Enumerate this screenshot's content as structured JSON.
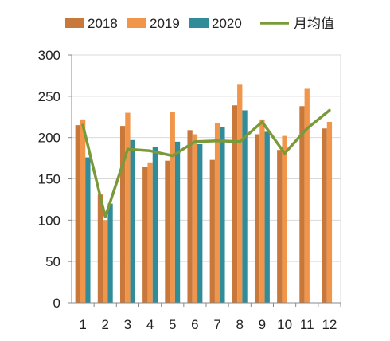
{
  "chart_data": {
    "type": "bar",
    "categories": [
      "1",
      "2",
      "3",
      "4",
      "5",
      "6",
      "7",
      "8",
      "9",
      "10",
      "11",
      "12"
    ],
    "series": [
      {
        "name": "2018",
        "type": "bar",
        "color": "#C8783A",
        "values": [
          215,
          131,
          214,
          164,
          172,
          209,
          173,
          239,
          204,
          185,
          238,
          211
        ]
      },
      {
        "name": "2019",
        "type": "bar",
        "color": "#F0954A",
        "values": [
          222,
          100,
          230,
          170,
          231,
          204,
          218,
          264,
          222,
          202,
          259,
          219
        ]
      },
      {
        "name": "2020",
        "type": "bar",
        "color": "#2F8C98",
        "values": [
          176,
          120,
          197,
          189,
          195,
          192,
          213,
          233,
          207,
          null,
          null,
          null
        ]
      },
      {
        "name": "月均值",
        "type": "line",
        "color": "#7A9A3A",
        "values": [
          215,
          104,
          186,
          184,
          178,
          195,
          196,
          195,
          219,
          181,
          211,
          233
        ]
      }
    ],
    "title": "",
    "xlabel": "",
    "ylabel": "",
    "ylim": [
      0,
      300
    ],
    "yticks": [
      0,
      50,
      100,
      150,
      200,
      250,
      300
    ],
    "grid": true,
    "legend": "top"
  }
}
